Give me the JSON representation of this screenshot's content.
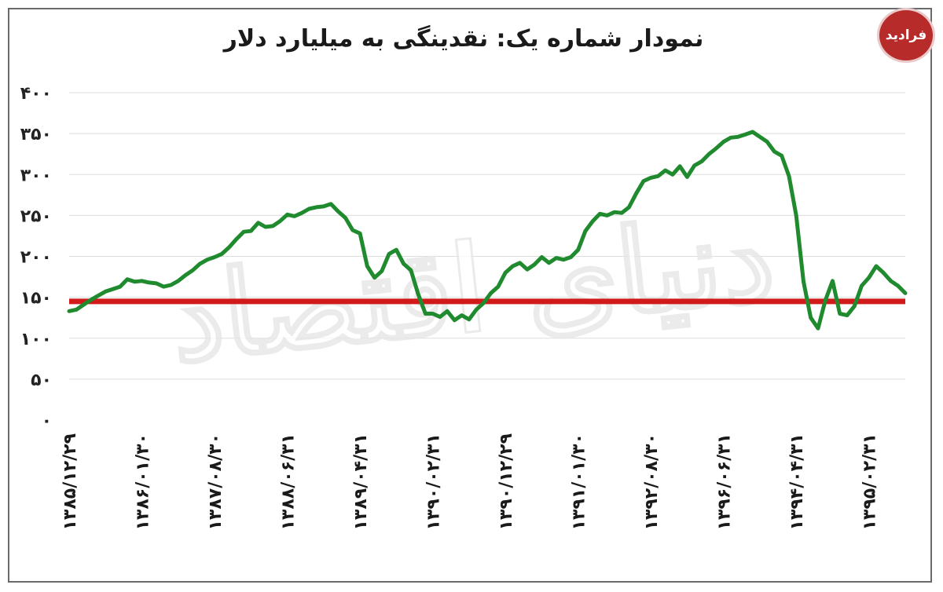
{
  "chart_data": {
    "type": "line",
    "title": "نمودار شماره یک: نقدینگی به میلیارد دلار",
    "ylim": [
      0,
      400
    ],
    "y_ticks": [
      {
        "value": 0,
        "label": "۰"
      },
      {
        "value": 50,
        "label": "۵۰"
      },
      {
        "value": 100,
        "label": "۱۰۰"
      },
      {
        "value": 150,
        "label": "۱۵۰"
      },
      {
        "value": 200,
        "label": "۲۰۰"
      },
      {
        "value": 250,
        "label": "۲۵۰"
      },
      {
        "value": 300,
        "label": "۳۰۰"
      },
      {
        "value": 350,
        "label": "۳۵۰"
      },
      {
        "value": 400,
        "label": "۴۰۰"
      }
    ],
    "x_ticks": [
      {
        "index": 0,
        "label": "۱۳۸۵/۱۲/۲۹"
      },
      {
        "index": 10,
        "label": "۱۳۸۶/۰۱/۳۰"
      },
      {
        "index": 20,
        "label": "۱۳۸۷/۰۸/۳۰"
      },
      {
        "index": 30,
        "label": "۱۳۸۸/۰۶/۳۱"
      },
      {
        "index": 40,
        "label": "۱۳۸۹/۰۴/۳۱"
      },
      {
        "index": 50,
        "label": "۱۳۹۰/۰۲/۳۱"
      },
      {
        "index": 60,
        "label": "۱۳۹۰/۱۲/۲۹"
      },
      {
        "index": 70,
        "label": "۱۳۹۱/۰۱/۳۰"
      },
      {
        "index": 80,
        "label": "۱۳۹۲/۰۸/۳۰"
      },
      {
        "index": 90,
        "label": "۱۳۹۶/۰۶/۳۱"
      },
      {
        "index": 100,
        "label": "۱۳۹۴/۰۴/۳۱"
      },
      {
        "index": 110,
        "label": "۱۳۹۵/۰۲/۳۱"
      }
    ],
    "reference_line": {
      "value": 145,
      "color": "#d11a1a"
    },
    "series": [
      {
        "color": "#1f8a2e",
        "values": [
          133,
          135,
          141,
          147,
          152,
          157,
          160,
          163,
          172,
          169,
          170,
          168,
          167,
          163,
          165,
          170,
          177,
          183,
          191,
          196,
          199,
          203,
          211,
          221,
          230,
          231,
          241,
          236,
          237,
          243,
          251,
          249,
          253,
          258,
          260,
          261,
          264,
          255,
          247,
          232,
          228,
          188,
          174,
          182,
          203,
          208,
          191,
          183,
          154,
          130,
          130,
          126,
          133,
          122,
          128,
          123,
          135,
          143,
          155,
          163,
          180,
          188,
          192,
          184,
          190,
          199,
          192,
          198,
          196,
          199,
          208,
          231,
          243,
          252,
          250,
          254,
          253,
          260,
          277,
          292,
          296,
          298,
          305,
          300,
          310,
          297,
          311,
          316,
          325,
          332,
          340,
          345,
          346,
          349,
          352,
          346,
          340,
          328,
          323,
          298,
          250,
          169,
          125,
          112,
          146,
          170,
          130,
          128,
          139,
          164,
          174,
          188,
          180,
          170,
          164,
          155
        ]
      }
    ]
  },
  "logo": {
    "text": "فرادید"
  },
  "watermark": {
    "text": "دنیای اقتصاد"
  },
  "colors": {
    "line": "#1f8a2e",
    "reference": "#d11a1a",
    "grid": "#dddddd"
  }
}
